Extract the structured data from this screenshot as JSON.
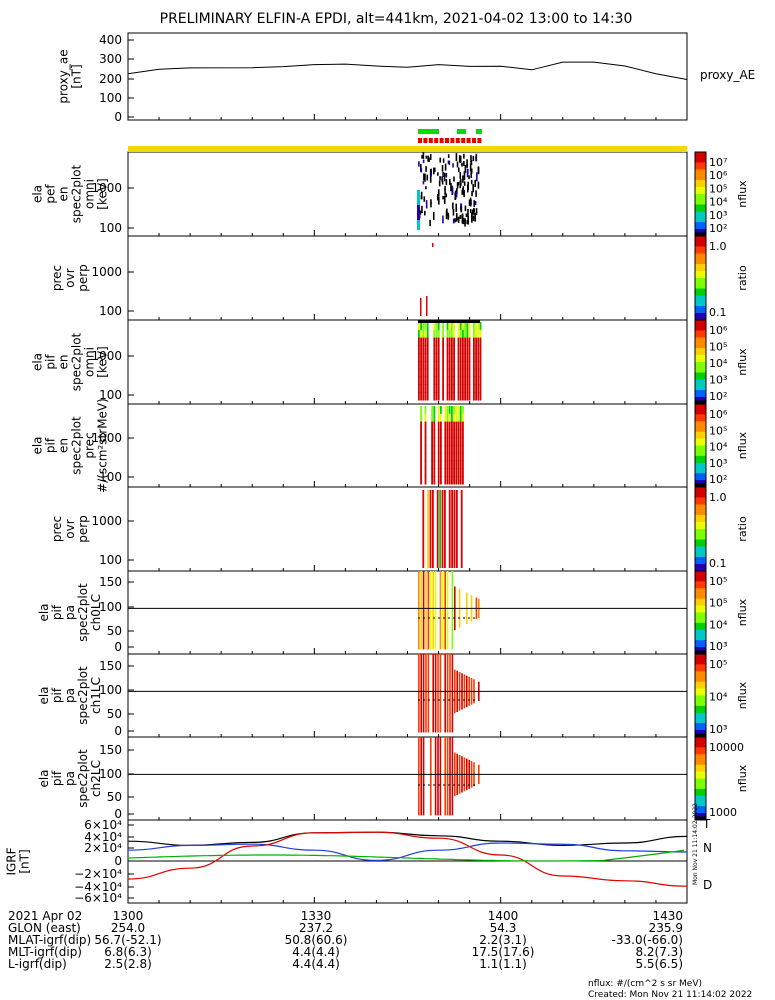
{
  "title": "PRELIMINARY ELFIN-A EPDI, alt=441km, 2021-04-02 13:00 to 14:30",
  "panels": [
    {
      "ylabel_lines": [
        "proxy_ae",
        "[nT]"
      ],
      "yticks": [
        "400",
        "300",
        "200",
        "100",
        "0"
      ],
      "side_label": "proxy_AE"
    },
    {
      "ylabel_lines": [
        "ela",
        "pef",
        "en",
        "spec2plot",
        "omni",
        "[keV]"
      ],
      "yticks": [
        "1000",
        "100"
      ],
      "colorbar": {
        "ticks": [
          "10⁷",
          "10⁶",
          "10⁵",
          "10⁴",
          "10³",
          "10²"
        ],
        "label": "nflux"
      }
    },
    {
      "ylabel_lines": [
        "prec",
        "ovr",
        "perp"
      ],
      "yticks": [
        "1000",
        "100"
      ],
      "colorbar": {
        "ticks": [
          "1.0",
          "0.1"
        ],
        "label": "ratio"
      }
    },
    {
      "ylabel_lines": [
        "ela",
        "pif",
        "en",
        "spec2plot",
        "omni",
        "[keV]"
      ],
      "yticks": [
        "1000",
        "100"
      ],
      "colorbar": {
        "ticks": [
          "10⁶",
          "10⁵",
          "10⁴",
          "10³",
          "10²"
        ],
        "label": "nflux"
      }
    },
    {
      "ylabel_lines": [
        "ela",
        "pif",
        "en",
        "spec2plot",
        "prec",
        "#/(scm²strMeV)"
      ],
      "yticks": [
        "1000",
        "100"
      ],
      "colorbar": {
        "ticks": [
          "10⁶",
          "10⁵",
          "10⁴",
          "10³",
          "10²"
        ],
        "label": "nflux"
      }
    },
    {
      "ylabel_lines": [
        "prec",
        "ovr",
        "perp"
      ],
      "yticks": [
        "1000",
        "100"
      ],
      "colorbar": {
        "ticks": [
          "1.0",
          "0.1"
        ],
        "label": "ratio"
      }
    },
    {
      "ylabel_lines": [
        "ela",
        "pif",
        "pa",
        "spec2plot",
        "ch0LC"
      ],
      "yticks": [
        "150",
        "100",
        "50",
        "0"
      ],
      "colorbar": {
        "ticks": [
          "10⁵",
          "10⁵",
          "10⁴",
          "10³"
        ],
        "label": "nflux"
      }
    },
    {
      "ylabel_lines": [
        "ela",
        "pif",
        "pa",
        "spec2plot",
        "ch1LC"
      ],
      "yticks": [
        "150",
        "100",
        "50",
        "0"
      ],
      "colorbar": {
        "ticks": [
          "10⁵",
          "10⁴",
          "10³"
        ],
        "label": "nflux"
      }
    },
    {
      "ylabel_lines": [
        "ela",
        "pif",
        "pa",
        "spec2plot",
        "ch2LC"
      ],
      "yticks": [
        "150",
        "100",
        "50",
        "0"
      ],
      "colorbar": {
        "ticks": [
          "10000",
          "1000"
        ],
        "label": "nflux"
      }
    },
    {
      "ylabel_lines": [
        "IGRF",
        "[nT]"
      ],
      "yticks": [
        "6×10⁴",
        "4×10⁴",
        "2×10⁴",
        "0",
        "−2×10⁴",
        "−4×10⁴",
        "−6×10⁴"
      ],
      "side_labels": [
        "T",
        "N",
        "D"
      ]
    }
  ],
  "ephemeris": {
    "rows": [
      [
        "2021 Apr 02",
        "1300",
        "1330",
        "1400",
        "1430"
      ],
      [
        "GLON (east)",
        "254.0",
        "237.2",
        "54.3",
        "235.9"
      ],
      [
        "MLAT-igrf(dip)",
        "56.7(-52.1)",
        "50.8(60.6)",
        "2.2(3.1)",
        "-33.0(-66.0)"
      ],
      [
        "MLT-igrf(dip)",
        "6.8(6.3)",
        "4.4(4.4)",
        "17.5(17.6)",
        "8.2(7.3)"
      ],
      [
        "L-igrf(dip)",
        "2.5(2.8)",
        "4.4(4.4)",
        "1.1(1.1)",
        "5.5(6.5)"
      ]
    ]
  },
  "footer": {
    "units": "nflux: #/(cm^2 s sr MeV)",
    "created": "Created: Mon Nov 21 11:14:02 2022",
    "vertical_stamp": "Mon Nov 21 11:14:02 2022"
  },
  "colors": {
    "yellow_bar": "#f5d800",
    "green_marks": "#00dd00",
    "red_marks": "#e60000",
    "T_line": "#000000",
    "N_line": "#1f3fd8",
    "Z_line": "#00b000",
    "D_line": "#e00000"
  },
  "chart_data": {
    "type": "line",
    "x_range": [
      "13:00",
      "14:30"
    ],
    "series": [
      {
        "name": "proxy_AE",
        "x": [
          "13:00",
          "13:05",
          "13:10",
          "13:20",
          "13:25",
          "13:30",
          "13:35",
          "13:40",
          "13:45",
          "13:50",
          "13:55",
          "14:00",
          "14:05",
          "14:10",
          "14:15",
          "14:20",
          "14:25",
          "14:30"
        ],
        "values": [
          225,
          248,
          255,
          256,
          262,
          272,
          275,
          265,
          258,
          272,
          263,
          264,
          245,
          285,
          285,
          265,
          225,
          195
        ]
      },
      {
        "name": "T",
        "x": [
          "13:00",
          "13:10",
          "13:20",
          "13:30",
          "13:40",
          "13:50",
          "14:00",
          "14:10",
          "14:20",
          "14:30"
        ],
        "values": [
          33000,
          26000,
          31000,
          47000,
          48000,
          42000,
          33000,
          26000,
          30000,
          41000
        ]
      },
      {
        "name": "N",
        "x": [
          "13:00",
          "13:10",
          "13:20",
          "13:30",
          "13:40",
          "13:50",
          "14:00",
          "14:10",
          "14:20",
          "14:30"
        ],
        "values": [
          18000,
          26000,
          28000,
          18000,
          1000,
          18000,
          30000,
          28000,
          17000,
          15000
        ]
      },
      {
        "name": "D",
        "x": [
          "13:00",
          "13:10",
          "13:20",
          "13:30",
          "13:40",
          "13:50",
          "14:00",
          "14:10",
          "14:20",
          "14:30"
        ],
        "values": [
          -30000,
          -12000,
          25000,
          47000,
          48000,
          38000,
          10000,
          -25000,
          -33000,
          -42000
        ]
      }
    ]
  }
}
